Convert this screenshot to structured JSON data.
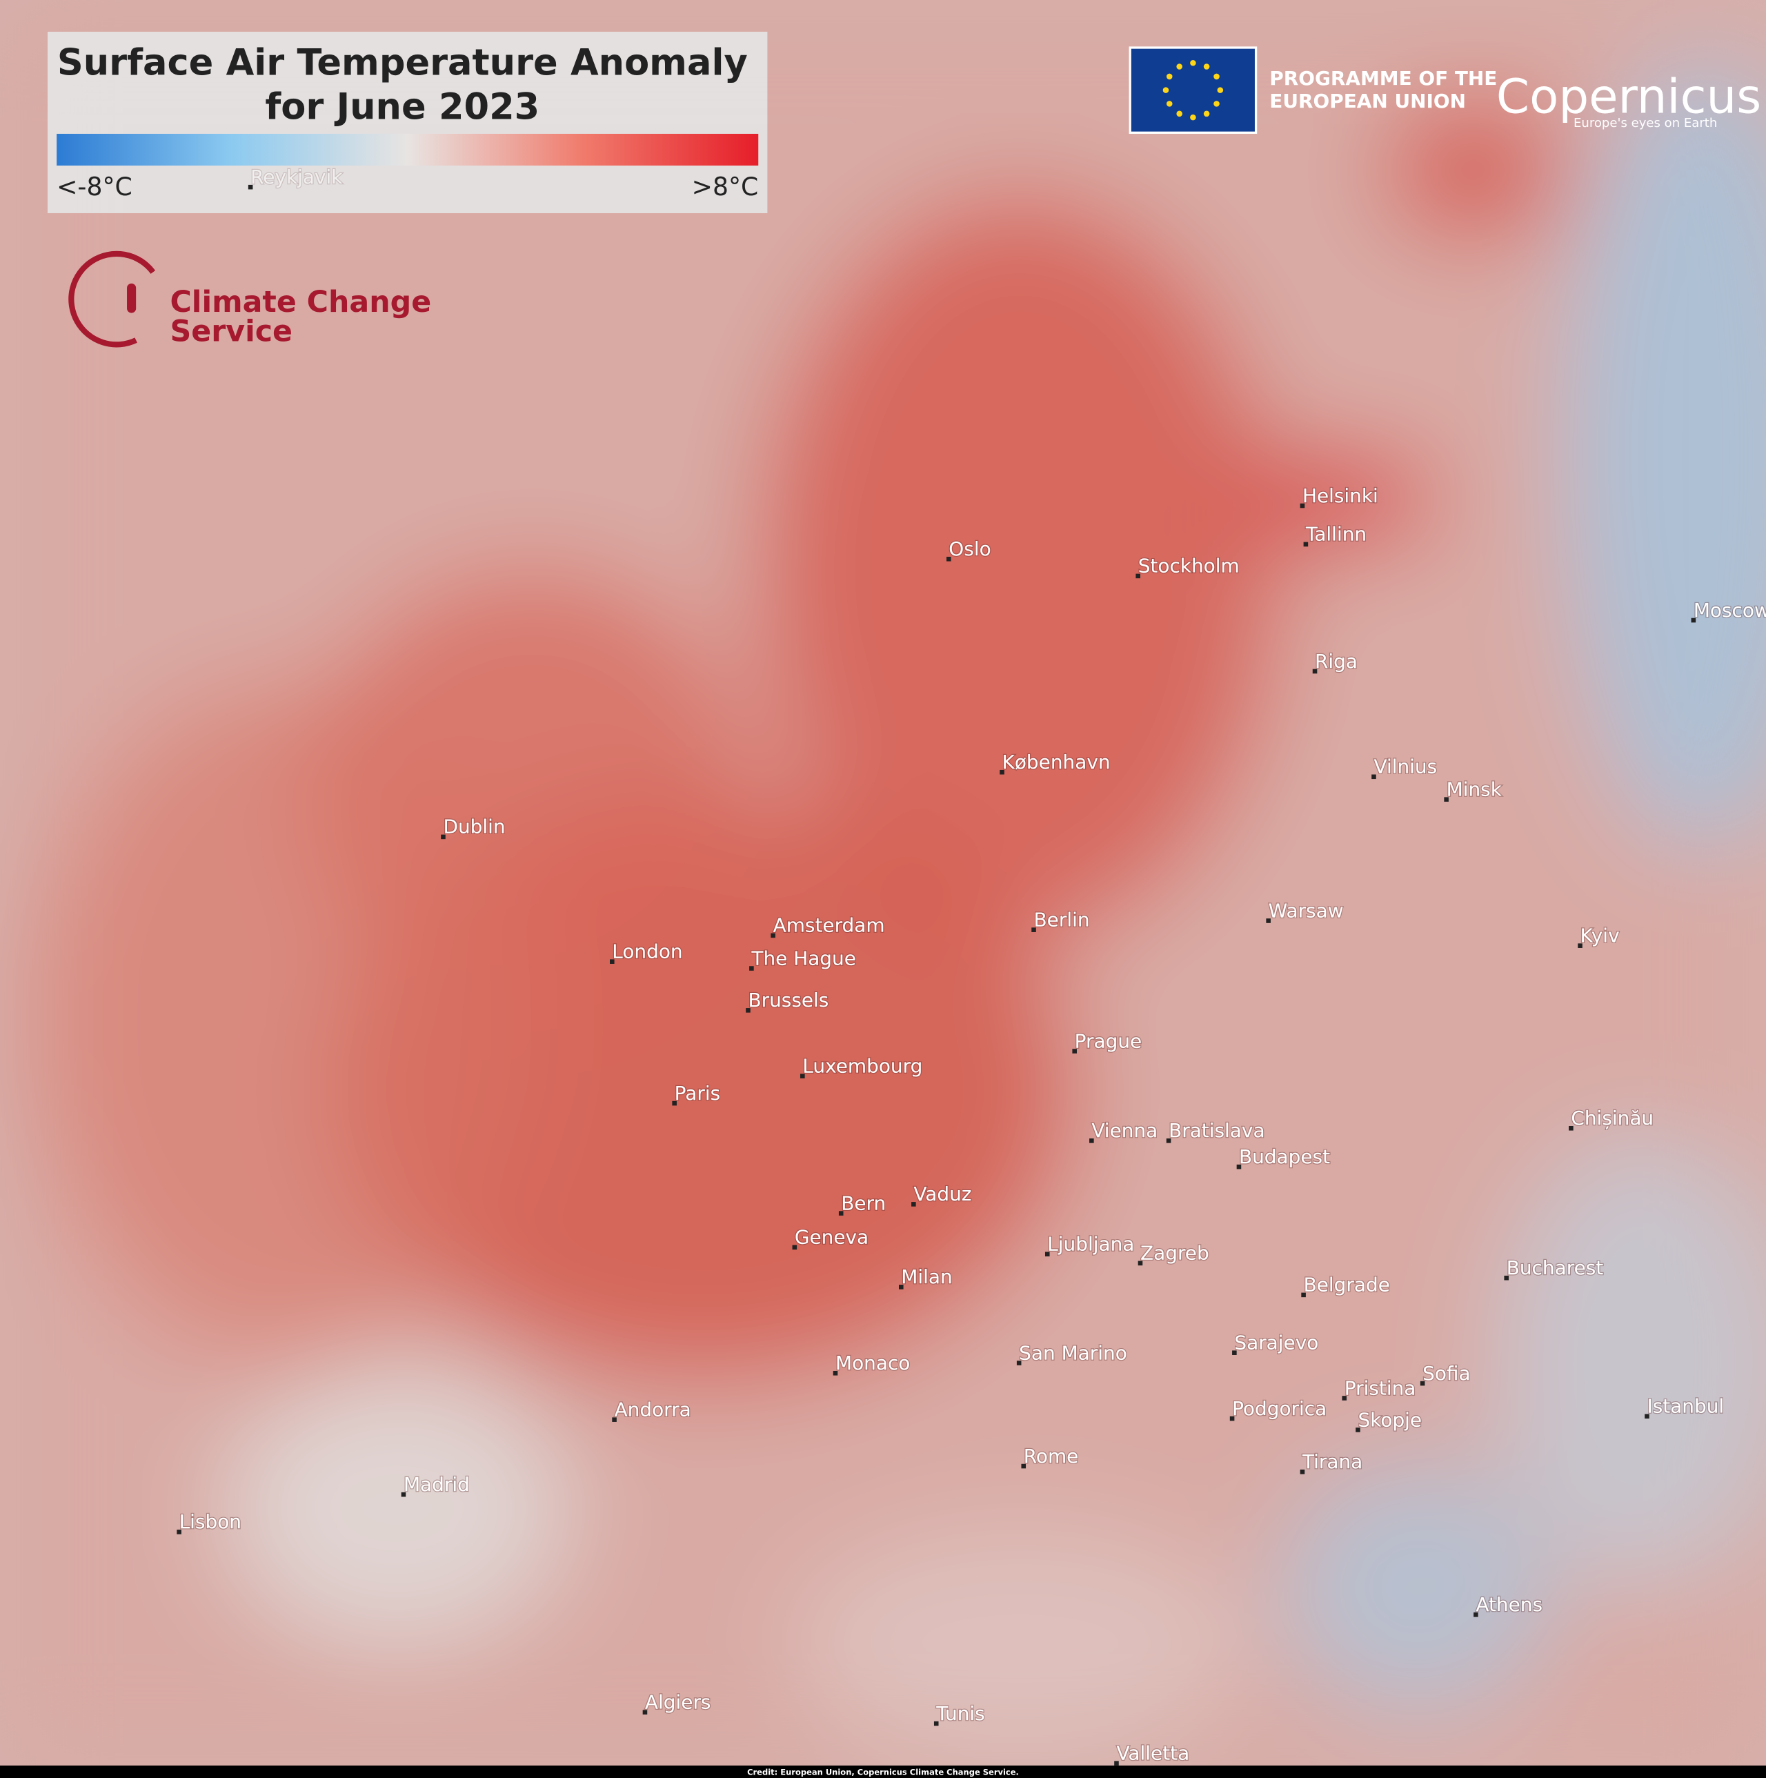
{
  "header": {
    "title_lines": [
      "Surface Air Temperature Anomaly",
      "for June 2023"
    ]
  },
  "legend": {
    "min_label": "<-8°C",
    "max_label": ">8°C"
  },
  "logos": {
    "eu_lines": [
      "PROGRAMME OF THE",
      "EUROPEAN UNION"
    ],
    "copernicus": "Copernicus",
    "copernicus_tagline": "Europe's eyes on Earth",
    "service_lines": [
      "Climate Change",
      "Service"
    ]
  },
  "cities": [
    "Reykjavik",
    "Oslo",
    "Stockholm",
    "Helsinki",
    "Tallinn",
    "Moscow",
    "Riga",
    "København",
    "Vilnius",
    "Minsk",
    "Dublin",
    "Amsterdam",
    "Berlin",
    "Warsaw",
    "Kyiv",
    "London",
    "The Hague",
    "Brussels",
    "Prague",
    "Luxembourg",
    "Paris",
    "Vienna",
    "Bratislava",
    "Chișinău",
    "Budapest",
    "Vaduz",
    "Bern",
    "Geneva",
    "Ljubljana",
    "Zagreb",
    "Bucharest",
    "Milan",
    "Belgrade",
    "Sarajevo",
    "San Marino",
    "Monaco",
    "Sofia",
    "Pristina",
    "Podgorica",
    "Istanbul",
    "Andorra",
    "Skopje",
    "Rome",
    "Tirana",
    "Madrid",
    "Lisbon",
    "Athens",
    "Algiers",
    "Tunis",
    "Valletta"
  ],
  "credit": "Credit: European Union, Copernicus  Climate Change Service."
}
